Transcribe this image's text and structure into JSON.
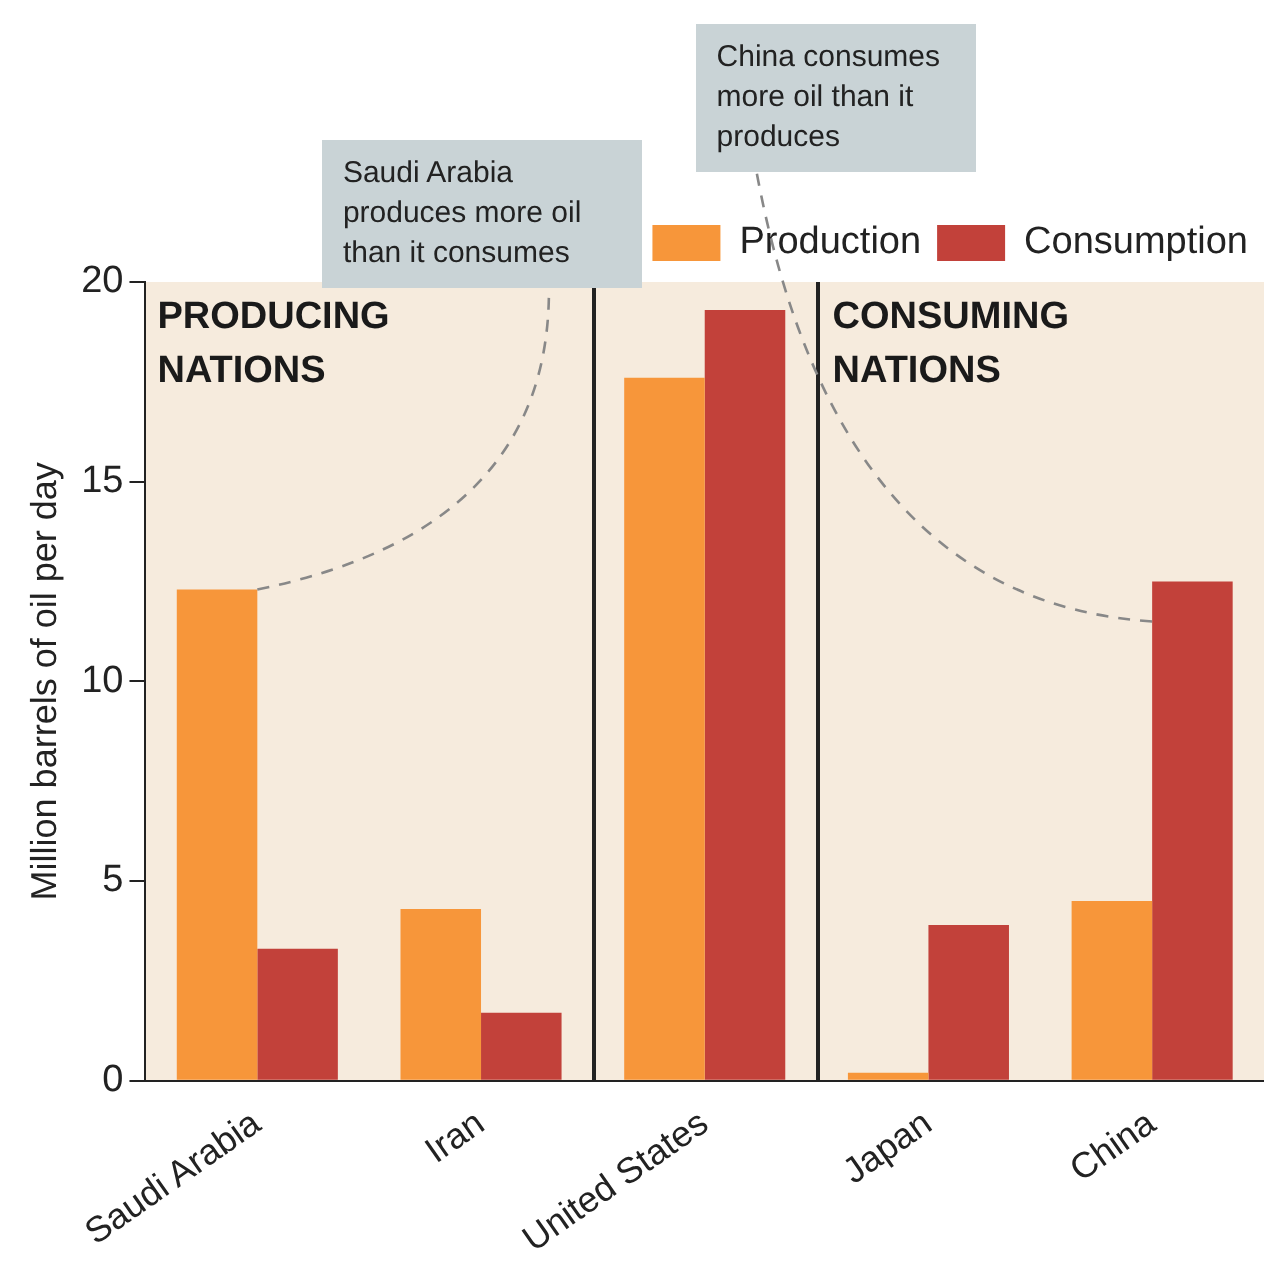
{
  "chart_data": {
    "type": "bar",
    "ylabel": "Million barrels of oil per day",
    "categories": [
      "Saudi Arabia",
      "Iran",
      "United States",
      "Japan",
      "China"
    ],
    "series": [
      {
        "name": "Production",
        "color": "#f7963a",
        "values": [
          12.3,
          4.3,
          17.6,
          0.2,
          4.5
        ]
      },
      {
        "name": "Consumption",
        "color": "#c2413a",
        "values": [
          3.3,
          1.7,
          19.3,
          3.9,
          12.5
        ]
      }
    ],
    "ylim": [
      0,
      20
    ],
    "yticks": [
      0,
      5,
      10,
      15,
      20
    ],
    "grid": false,
    "legend": "top right",
    "annotations": [
      "PRODUCING NATIONS",
      "CONSUMING NATIONS",
      {
        "text": "Saudi Arabia produces more oil than it consumes",
        "x": "Saudi Arabia",
        "y": 12.3
      },
      {
        "text": "China consumes more oil than it produces",
        "x": "China",
        "y": 11.5
      }
    ]
  }
}
